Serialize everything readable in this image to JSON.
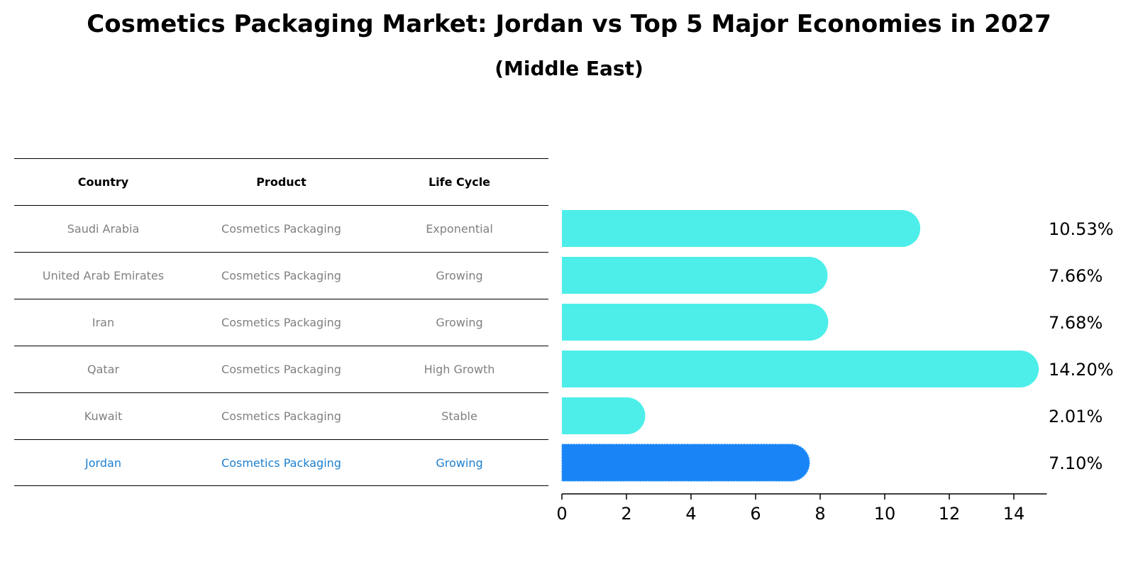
{
  "title": "Cosmetics Packaging Market: Jordan vs Top 5 Major Economies in 2027",
  "subtitle": "(Middle East)",
  "table": {
    "headers": [
      "Country",
      "Product",
      "Life Cycle"
    ],
    "rows": [
      {
        "country": "Saudi Arabia",
        "product": "Cosmetics Packaging",
        "life_cycle": "Exponential"
      },
      {
        "country": "United Arab Emirates",
        "product": "Cosmetics Packaging",
        "life_cycle": "Growing"
      },
      {
        "country": "Iran",
        "product": "Cosmetics Packaging",
        "life_cycle": "Growing"
      },
      {
        "country": "Qatar",
        "product": "Cosmetics Packaging",
        "life_cycle": "High Growth"
      },
      {
        "country": "Kuwait",
        "product": "Cosmetics Packaging",
        "life_cycle": "Stable"
      },
      {
        "country": "Jordan",
        "product": "Cosmetics Packaging",
        "life_cycle": "Growing"
      }
    ]
  },
  "colors": {
    "bar": "#4deee9",
    "highlight": "#1984f5",
    "highlight_text": "#1e80d0",
    "dim_text": "#808080"
  },
  "chart_data": {
    "type": "bar",
    "orientation": "horizontal",
    "categories": [
      "Saudi Arabia",
      "United Arab Emirates",
      "Iran",
      "Qatar",
      "Kuwait",
      "Jordan"
    ],
    "values": [
      10.53,
      7.66,
      7.68,
      14.2,
      2.01,
      7.1
    ],
    "value_labels": [
      "10.53%",
      "7.66%",
      "7.68%",
      "14.20%",
      "2.01%",
      "7.10%"
    ],
    "highlight": "Jordan",
    "xlim": [
      0,
      15
    ],
    "xticks": [
      0,
      2,
      4,
      6,
      8,
      10,
      12,
      14
    ],
    "grid": false,
    "legend": false,
    "xlabel": "",
    "ylabel": ""
  }
}
